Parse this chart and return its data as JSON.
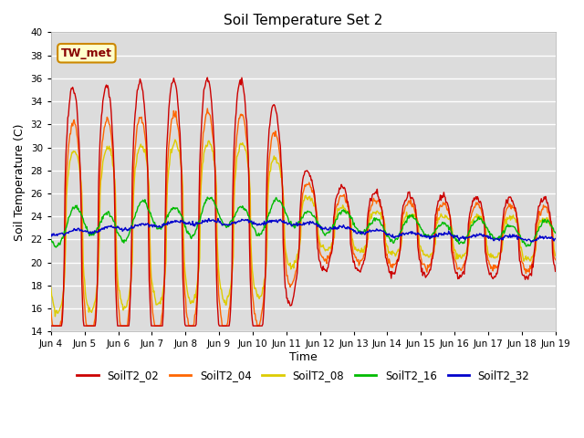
{
  "title": "Soil Temperature Set 2",
  "xlabel": "Time",
  "ylabel": "Soil Temperature (C)",
  "ylim": [
    14,
    40
  ],
  "yticks": [
    14,
    16,
    18,
    20,
    22,
    24,
    26,
    28,
    30,
    32,
    34,
    36,
    38,
    40
  ],
  "bg_color": "#dcdcdc",
  "grid_color": "#ffffff",
  "line_colors": {
    "SoilT2_02": "#cc0000",
    "SoilT2_04": "#ff6600",
    "SoilT2_08": "#ddcc00",
    "SoilT2_16": "#00bb00",
    "SoilT2_32": "#0000cc"
  },
  "annotation_text": "TW_met",
  "annotation_color": "#880000",
  "annotation_bg": "#ffffcc",
  "annotation_border": "#cc8800",
  "xtick_labels": [
    "Jun 4",
    "Jun 5",
    "Jun 6",
    "Jun 7",
    "Jun 8",
    "Jun 9",
    "Jun 10",
    "Jun 11",
    "Jun 12",
    "Jun 13",
    "Jun 14",
    "Jun 15",
    "Jun 16",
    "Jun 17",
    "Jun 18",
    "Jun 19"
  ],
  "n_days": 15,
  "samples_per_day": 48
}
